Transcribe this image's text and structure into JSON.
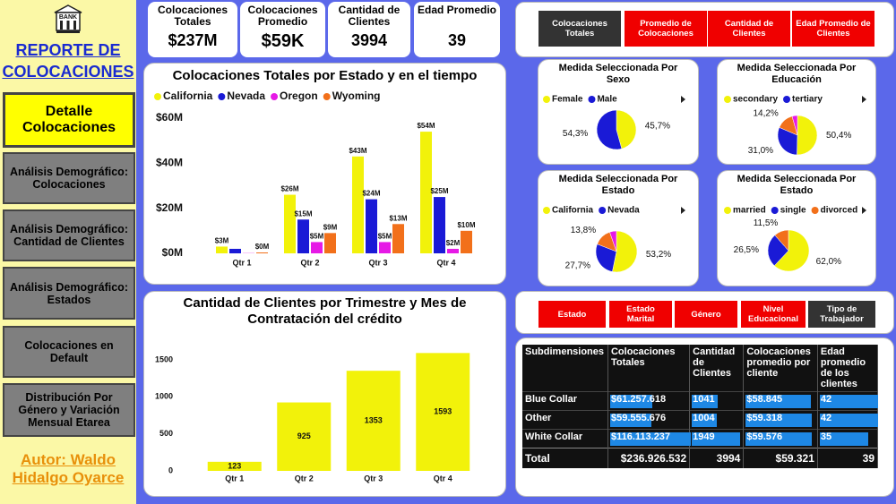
{
  "sidebar": {
    "logo": "BANK",
    "title": "REPORTE DE COLOCACIONES",
    "nav": [
      "Detalle Colocaciones",
      "Análisis Demográfico: Colocaciones",
      "Análisis Demográfico: Cantidad de Clientes",
      "Análisis Demográfico: Estados",
      "Colocaciones en Default",
      "Distribución Por Género y Variación Mensual Etarea"
    ],
    "active": 0,
    "author": "Autor: Waldo Hidalgo Oyarce"
  },
  "kpis": [
    {
      "label": "Colocaciones Totales",
      "value": "$237M"
    },
    {
      "label": "Colocaciones Promedio",
      "value": "$59K"
    },
    {
      "label": "Cantidad de Clientes",
      "value": "3994"
    },
    {
      "label": "Edad Promedio",
      "value": "39"
    }
  ],
  "measures": {
    "items": [
      "Colocaciones Totales",
      "Promedio de Colocaciones",
      "Cantidad de Clientes",
      "Edad Promedio de Clientes"
    ],
    "active": 0
  },
  "chart_data": [
    {
      "type": "bar",
      "title": "Colocaciones Totales por Estado y en el tiempo",
      "categories": [
        "Qtr 1",
        "Qtr 2",
        "Qtr 3",
        "Qtr 4"
      ],
      "series": [
        {
          "name": "California",
          "color": "#f2f20a",
          "values": [
            3000000,
            26000000,
            43000000,
            54000000
          ],
          "value_labels": [
            "$3M",
            "$26M",
            "$43M",
            "$54M"
          ]
        },
        {
          "name": "Nevada",
          "color": "#1a1ad6",
          "values": [
            2000000,
            15000000,
            24000000,
            25000000
          ],
          "value_labels": [
            null,
            "$15M",
            "$24M",
            "$25M"
          ]
        },
        {
          "name": "Oregon",
          "color": "#e619e6",
          "values": [
            100000,
            5000000,
            5000000,
            2000000
          ],
          "value_labels": [
            null,
            "$5M",
            "$5M",
            "$2M"
          ]
        },
        {
          "name": "Wyoming",
          "color": "#f2701a",
          "values": [
            400000,
            9000000,
            13000000,
            10000000
          ],
          "value_labels": [
            "$0M",
            "$9M",
            "$13M",
            "$10M"
          ]
        }
      ],
      "ylim": [
        0,
        60000000
      ],
      "yticks": [
        {
          "value": 0,
          "label": "$0M"
        },
        {
          "value": 20000000,
          "label": "$20M"
        },
        {
          "value": 40000000,
          "label": "$40M"
        },
        {
          "value": 60000000,
          "label": "$60M"
        }
      ],
      "legend": "top-left"
    },
    {
      "type": "bar",
      "title": "Cantidad de Clientes por Trimestre y Mes de Contratación del crédito",
      "categories": [
        "Qtr 1",
        "Qtr 2",
        "Qtr 3",
        "Qtr 4"
      ],
      "values": [
        123,
        925,
        1353,
        1593
      ],
      "color": "#f2f20a",
      "ylim": [
        0,
        1700
      ],
      "yticks": [
        0,
        500,
        1000,
        1500
      ]
    },
    {
      "type": "pie",
      "title": "Medida Seleccionada Por Sexo",
      "categories": [
        "Female",
        "Male"
      ],
      "values": [
        45.7,
        54.3
      ],
      "value_labels": [
        "45,7%",
        "54,3%"
      ],
      "colors": [
        "#f2f20a",
        "#1a1ad6"
      ]
    },
    {
      "type": "pie",
      "title": "Medida Seleccionada Por Educación",
      "categories": [
        "secondary",
        "tertiary",
        null,
        null
      ],
      "values": [
        50.4,
        31.0,
        14.2,
        4.4
      ],
      "value_labels": [
        "50,4%",
        "31,0%",
        "14,2%",
        null
      ],
      "colors": [
        "#f2f20a",
        "#1a1ad6",
        "#f2701a",
        "#e619e6"
      ]
    },
    {
      "type": "pie",
      "title": "Medida Seleccionada Por Estado",
      "categories": [
        "California",
        "Nevada",
        null,
        null
      ],
      "values": [
        53.2,
        27.7,
        13.8,
        5.3
      ],
      "value_labels": [
        "53,2%",
        "27,7%",
        "13,8%",
        null
      ],
      "colors": [
        "#f2f20a",
        "#1a1ad6",
        "#f2701a",
        "#e619e6"
      ]
    },
    {
      "type": "pie",
      "title": "Medida Seleccionada Por Estado",
      "categories": [
        "married",
        "single",
        "divorced"
      ],
      "values": [
        62.0,
        26.5,
        11.5
      ],
      "value_labels": [
        "62,0%",
        "26,5%",
        "11,5%"
      ],
      "colors": [
        "#f2f20a",
        "#1a1ad6",
        "#f2701a"
      ]
    }
  ],
  "slicers": {
    "items": [
      "Estado",
      "Estado Marital",
      "Género",
      "Nivel Educacional",
      "Tipo de Trabajador"
    ],
    "active": 4
  },
  "table": {
    "columns": [
      "Subdimensiones",
      "Colocaciones Totales",
      "Cantidad de Clientes",
      "Colocaciones promedio por cliente",
      "Edad promedio de los clientes"
    ],
    "rows": [
      [
        "Blue Collar",
        "$61.257.618",
        "1041",
        "$58.845",
        "42"
      ],
      [
        "Other",
        "$59.555.676",
        "1004",
        "$59.318",
        "42"
      ],
      [
        "White Collar",
        "$116.113.237",
        "1949",
        "$59.576",
        "35"
      ]
    ],
    "total": [
      "Total",
      "$236.926.532",
      "3994",
      "$59.321",
      "39"
    ]
  }
}
